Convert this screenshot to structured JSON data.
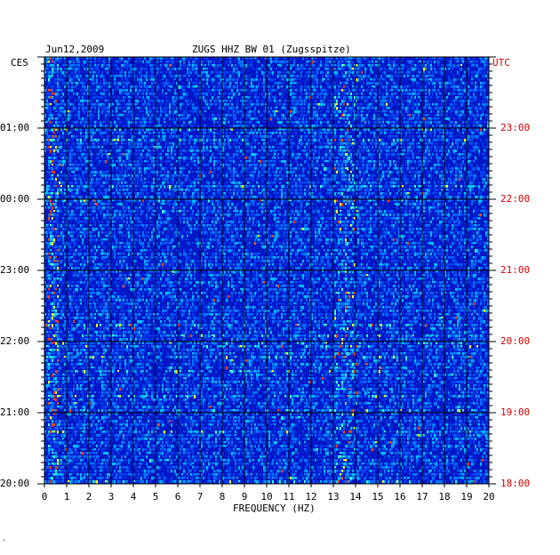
{
  "header": {
    "date": "Jun12,2009",
    "station": "ZUGS HHZ BW 01 (Zugsspitze)"
  },
  "left_axis": {
    "label": "CES",
    "ticks": [
      "01:00",
      "00:00",
      "23:00",
      "22:00",
      "21:00",
      "20:00"
    ]
  },
  "right_axis": {
    "label": "UTC",
    "ticks": [
      "23:00",
      "22:00",
      "21:00",
      "20:00",
      "19:00",
      "18:00"
    ]
  },
  "x_axis": {
    "label": "FREQUENCY (HZ)",
    "ticks": [
      "0",
      "1",
      "2",
      "3",
      "4",
      "5",
      "6",
      "7",
      "8",
      "9",
      "10",
      "11",
      "12",
      "13",
      "14",
      "15",
      "16",
      "17",
      "18",
      "19",
      "20"
    ]
  },
  "footnote": ".",
  "colors": {
    "background_low": "#0018c8",
    "mid": "#00a8ff",
    "high": "#ffff00",
    "peak": "#ff2000",
    "utc_text": "#d40000"
  },
  "chart_data": {
    "type": "heatmap",
    "title": "ZUGS HHZ BW 01 (Zugsspitze)",
    "subtitle": "Jun12,2009",
    "xlabel": "FREQUENCY (HZ)",
    "ylabel_left": "CES",
    "ylabel_right": "UTC",
    "xlim": [
      0,
      20
    ],
    "y_utc_range_hours": [
      18,
      24
    ],
    "grid": true,
    "bands_of_high_energy_hz": [
      [
        0.1,
        0.6
      ],
      [
        13.0,
        14.0
      ]
    ],
    "colormap": [
      "#0018c8",
      "#00a8ff",
      "#ffff00",
      "#ff2000"
    ]
  }
}
